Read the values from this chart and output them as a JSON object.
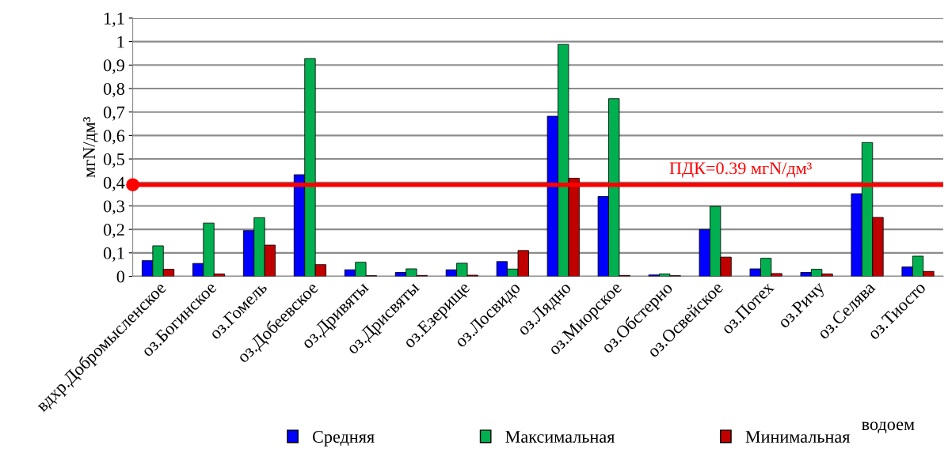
{
  "chart_data": {
    "type": "bar",
    "ylabel": "мгN/дм³",
    "xlabel": "водоем",
    "categories": [
      "вдхр.Добромысленское",
      "оз.Богинское",
      "оз.Гомель",
      "оз.Добеевское",
      "оз.Дривяты",
      "оз.Дрисвяты",
      "оз.Езерище",
      "оз.Лосвидо",
      "оз.Лядно",
      "оз.Миорское",
      "оз.Обстерно",
      "оз.Освейское",
      "оз.Потех",
      "оз.Ричу",
      "оз.Селява",
      "оз.Тиосто"
    ],
    "series": [
      {
        "name": "Средняя",
        "color": "#0000ff",
        "values": [
          0.067,
          0.055,
          0.195,
          0.433,
          0.028,
          0.017,
          0.028,
          0.063,
          0.682,
          0.34,
          0.006,
          0.2,
          0.032,
          0.017,
          0.352,
          0.04
        ]
      },
      {
        "name": "Максимальная",
        "color": "#00b050",
        "values": [
          0.13,
          0.227,
          0.25,
          0.928,
          0.06,
          0.032,
          0.056,
          0.031,
          0.988,
          0.757,
          0.01,
          0.298,
          0.077,
          0.03,
          0.57,
          0.086
        ]
      },
      {
        "name": "Минимальная",
        "color": "#c00000",
        "values": [
          0.03,
          0.01,
          0.133,
          0.05,
          0.003,
          0.004,
          0.005,
          0.11,
          0.418,
          0.004,
          0.003,
          0.082,
          0.012,
          0.01,
          0.251,
          0.021
        ]
      }
    ],
    "ylim": [
      0,
      1.1
    ],
    "yticks": [
      0,
      {
        "value": 0.1,
        "label": "0,1"
      },
      {
        "value": 0.2,
        "label": "0,2"
      },
      {
        "value": 0.3,
        "label": "0,3"
      },
      {
        "value": 0.4,
        "label": "0,4"
      },
      {
        "value": 0.5,
        "label": "0,5"
      },
      {
        "value": 0.6,
        "label": "0,6"
      },
      {
        "value": 0.7,
        "label": "0,7"
      },
      {
        "value": 0.8,
        "label": "0,8"
      },
      {
        "value": 0.9,
        "label": "0,9"
      },
      1,
      {
        "value": 1.1,
        "label": "1,1"
      }
    ],
    "ref_lines": [
      {
        "axis": "y",
        "value": 0.39,
        "label": "ПДК=0.39 мгN/дм³",
        "color": "#ff0000",
        "line_style": "solid"
      }
    ],
    "grid": "y",
    "legend": "bottom"
  }
}
